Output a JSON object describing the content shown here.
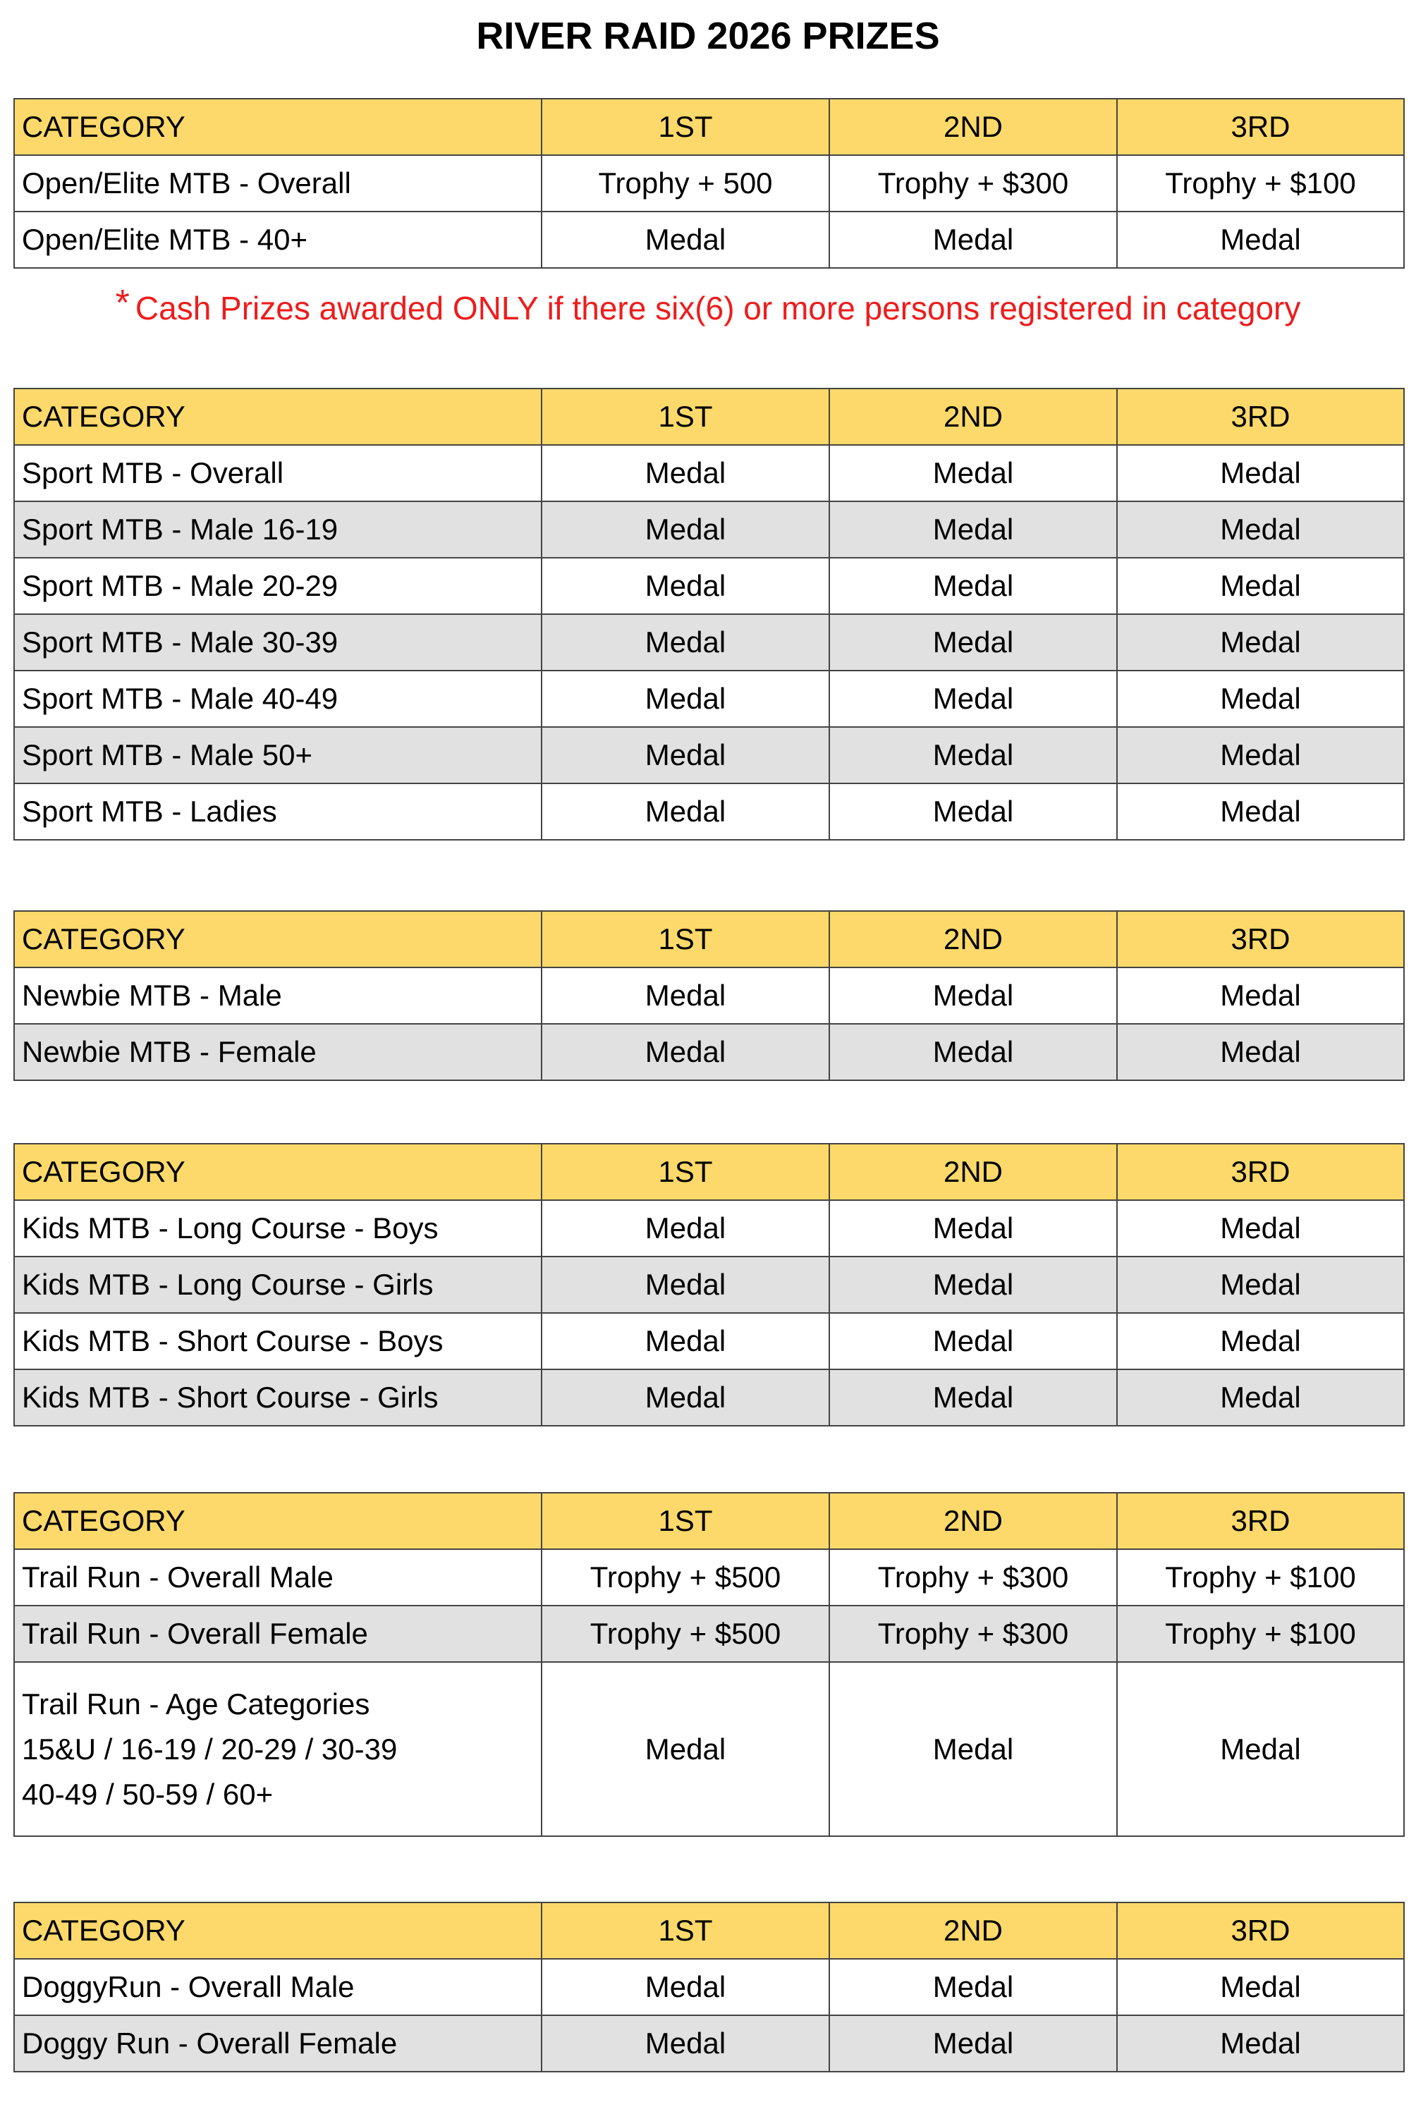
{
  "title": "RIVER RAID 2026 PRIZES",
  "note": {
    "star": "*",
    "text": "Cash Prizes awarded ONLY if there six(6) or more persons registered in category"
  },
  "colors": {
    "header": "#fcd96a",
    "alt_row": "#e1e1e1",
    "note": "#ee1c1c"
  },
  "tables": [
    {
      "header": [
        "CATEGORY",
        "1ST",
        "2ND",
        "3RD"
      ],
      "rows": [
        {
          "category": [
            "Open/Elite MTB - Overall"
          ],
          "prizes": [
            "Trophy + 500",
            "Trophy + $300",
            "Trophy + $100"
          ],
          "shaded": false
        },
        {
          "category": [
            "Open/Elite MTB - 40+"
          ],
          "prizes": [
            "Medal",
            "Medal",
            "Medal"
          ],
          "shaded": false
        }
      ]
    },
    {
      "header": [
        "CATEGORY",
        "1ST",
        "2ND",
        "3RD"
      ],
      "rows": [
        {
          "category": [
            "Sport MTB - Overall"
          ],
          "prizes": [
            "Medal",
            "Medal",
            "Medal"
          ],
          "shaded": false
        },
        {
          "category": [
            "Sport MTB - Male 16-19"
          ],
          "prizes": [
            "Medal",
            "Medal",
            "Medal"
          ],
          "shaded": true
        },
        {
          "category": [
            "Sport MTB - Male 20-29"
          ],
          "prizes": [
            "Medal",
            "Medal",
            "Medal"
          ],
          "shaded": false
        },
        {
          "category": [
            "Sport MTB - Male 30-39"
          ],
          "prizes": [
            "Medal",
            "Medal",
            "Medal"
          ],
          "shaded": true
        },
        {
          "category": [
            "Sport MTB - Male 40-49"
          ],
          "prizes": [
            "Medal",
            "Medal",
            "Medal"
          ],
          "shaded": false
        },
        {
          "category": [
            "Sport MTB - Male 50+"
          ],
          "prizes": [
            "Medal",
            "Medal",
            "Medal"
          ],
          "shaded": true
        },
        {
          "category": [
            "Sport MTB - Ladies"
          ],
          "prizes": [
            "Medal",
            "Medal",
            "Medal"
          ],
          "shaded": false
        }
      ]
    },
    {
      "header": [
        "CATEGORY",
        "1ST",
        "2ND",
        "3RD"
      ],
      "rows": [
        {
          "category": [
            "Newbie MTB - Male"
          ],
          "prizes": [
            "Medal",
            "Medal",
            "Medal"
          ],
          "shaded": false
        },
        {
          "category": [
            "Newbie MTB - Female"
          ],
          "prizes": [
            "Medal",
            "Medal",
            "Medal"
          ],
          "shaded": true
        }
      ]
    },
    {
      "header": [
        "CATEGORY",
        "1ST",
        "2ND",
        "3RD"
      ],
      "rows": [
        {
          "category": [
            "Kids MTB - Long Course - Boys"
          ],
          "prizes": [
            "Medal",
            "Medal",
            "Medal"
          ],
          "shaded": false
        },
        {
          "category": [
            "Kids MTB - Long Course - Girls"
          ],
          "prizes": [
            "Medal",
            "Medal",
            "Medal"
          ],
          "shaded": true
        },
        {
          "category": [
            "Kids MTB - Short Course - Boys"
          ],
          "prizes": [
            "Medal",
            "Medal",
            "Medal"
          ],
          "shaded": false
        },
        {
          "category": [
            "Kids MTB - Short Course - Girls"
          ],
          "prizes": [
            "Medal",
            "Medal",
            "Medal"
          ],
          "shaded": true
        }
      ]
    },
    {
      "header": [
        "CATEGORY",
        "1ST",
        "2ND",
        "3RD"
      ],
      "rows": [
        {
          "category": [
            "Trail Run - Overall Male"
          ],
          "prizes": [
            "Trophy + $500",
            "Trophy + $300",
            "Trophy + $100"
          ],
          "shaded": false
        },
        {
          "category": [
            "Trail Run - Overall Female"
          ],
          "prizes": [
            "Trophy + $500",
            "Trophy + $300",
            "Trophy + $100"
          ],
          "shaded": true
        },
        {
          "category": [
            "Trail Run - Age Categories",
            "15&U / 16-19 / 20-29 / 30-39",
            "40-49 / 50-59 / 60+"
          ],
          "prizes": [
            "Medal",
            "Medal",
            "Medal"
          ],
          "shaded": false
        }
      ]
    },
    {
      "header": [
        "CATEGORY",
        "1ST",
        "2ND",
        "3RD"
      ],
      "rows": [
        {
          "category": [
            "DoggyRun - Overall Male"
          ],
          "prizes": [
            "Medal",
            "Medal",
            "Medal"
          ],
          "shaded": false
        },
        {
          "category": [
            "Doggy Run - Overall Female"
          ],
          "prizes": [
            "Medal",
            "Medal",
            "Medal"
          ],
          "shaded": true
        }
      ]
    }
  ]
}
